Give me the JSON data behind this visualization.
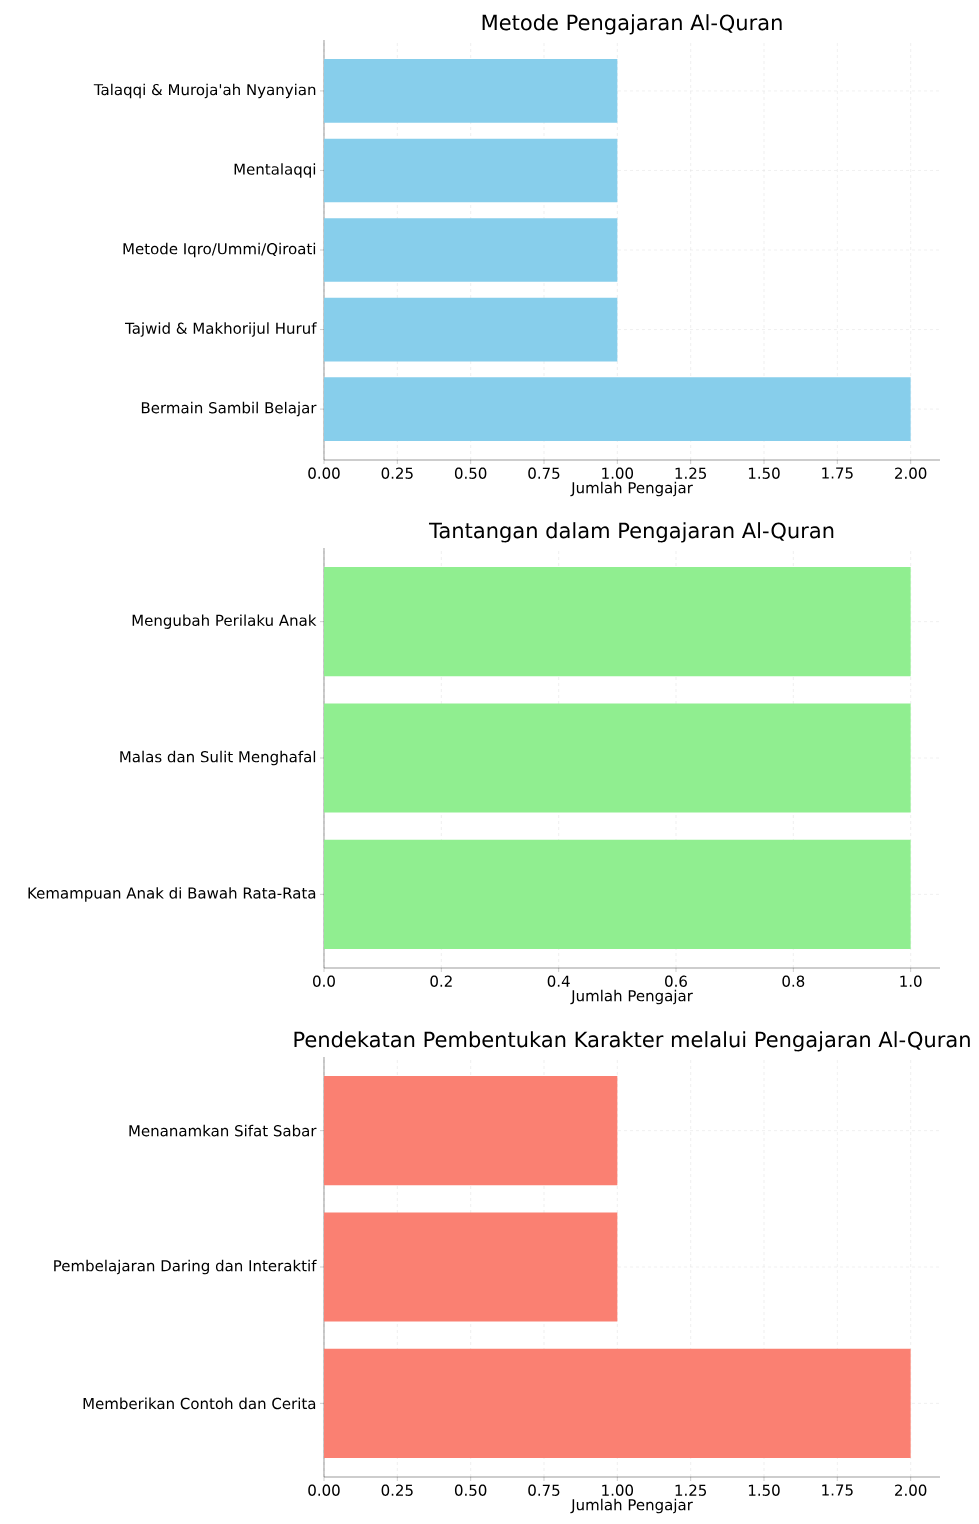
{
  "chart_data": [
    {
      "type": "bar",
      "orientation": "horizontal",
      "title": "Metode Pengajaran Al-Quran",
      "xlabel": "Jumlah Pengajar",
      "categories": [
        "Talaqqi & Muroja'ah Nyanyian",
        "Mentalaqqi",
        "Metode Iqro/Ummi/Qiroati",
        "Tajwid & Makhorijul Huruf",
        "Bermain Sambil Belajar"
      ],
      "values": [
        1,
        1,
        1,
        1,
        2
      ],
      "color": "#87ceeb",
      "xlim": [
        0,
        2.1
      ],
      "xticks": [
        {
          "value": 0,
          "label": "0.00"
        },
        {
          "value": 0.25,
          "label": "0.25"
        },
        {
          "value": 0.5,
          "label": "0.50"
        },
        {
          "value": 0.75,
          "label": "0.75"
        },
        {
          "value": 1,
          "label": "1.00"
        },
        {
          "value": 1.25,
          "label": "1.25"
        },
        {
          "value": 1.5,
          "label": "1.50"
        },
        {
          "value": 1.75,
          "label": "1.75"
        },
        {
          "value": 2,
          "label": "2.00"
        }
      ],
      "grid": true
    },
    {
      "type": "bar",
      "orientation": "horizontal",
      "title": "Tantangan dalam Pengajaran Al-Quran",
      "xlabel": "Jumlah Pengajar",
      "categories": [
        "Mengubah Perilaku Anak",
        "Malas dan Sulit Menghafal",
        "Kemampuan Anak di Bawah Rata-Rata"
      ],
      "values": [
        1,
        1,
        1
      ],
      "color": "#90ee90",
      "xlim": [
        0,
        1.05
      ],
      "xticks": [
        {
          "value": 0,
          "label": "0.0"
        },
        {
          "value": 0.2,
          "label": "0.2"
        },
        {
          "value": 0.4,
          "label": "0.4"
        },
        {
          "value": 0.6,
          "label": "0.6"
        },
        {
          "value": 0.8,
          "label": "0.8"
        },
        {
          "value": 1,
          "label": "1.0"
        }
      ],
      "grid": true
    },
    {
      "type": "bar",
      "orientation": "horizontal",
      "title": "Pendekatan Pembentukan Karakter melalui Pengajaran Al-Quran",
      "xlabel": "Jumlah Pengajar",
      "categories": [
        "Menanamkan Sifat Sabar",
        "Pembelajaran Daring dan Interaktif",
        "Memberikan Contoh dan Cerita"
      ],
      "values": [
        1,
        1,
        2
      ],
      "color": "#fa8072",
      "xlim": [
        0,
        2.1
      ],
      "xticks": [
        {
          "value": 0,
          "label": "0.00"
        },
        {
          "value": 0.25,
          "label": "0.25"
        },
        {
          "value": 0.5,
          "label": "0.50"
        },
        {
          "value": 0.75,
          "label": "0.75"
        },
        {
          "value": 1,
          "label": "1.00"
        },
        {
          "value": 1.25,
          "label": "1.25"
        },
        {
          "value": 1.5,
          "label": "1.50"
        },
        {
          "value": 1.75,
          "label": "1.75"
        },
        {
          "value": 2,
          "label": "2.00"
        }
      ],
      "grid": true
    }
  ]
}
